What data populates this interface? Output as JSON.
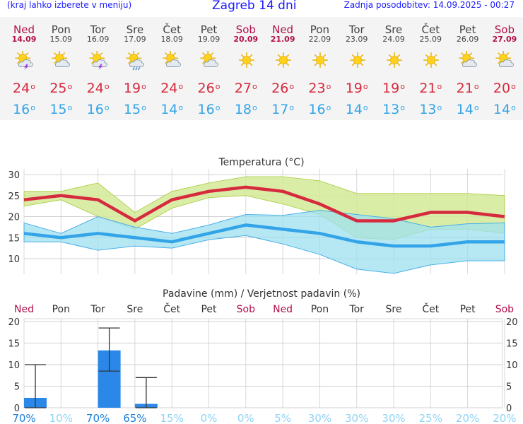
{
  "header": {
    "menu_link": "(kraj lahko izberete v meniju)",
    "title": "Zagreb 14 dni",
    "updated": "Zadnja posodobitev: 14.09.2025 - 00:27"
  },
  "days": [
    {
      "name": "Ned",
      "date": "14.09",
      "weekend": true,
      "icon": "partly-cloudy-thunder-icon",
      "max": "24",
      "min": "16"
    },
    {
      "name": "Pon",
      "date": "15.09",
      "weekend": false,
      "icon": "partly-cloudy-icon",
      "max": "25",
      "min": "15"
    },
    {
      "name": "Tor",
      "date": "16.09",
      "weekend": false,
      "icon": "partly-cloudy-thunder-icon",
      "max": "24",
      "min": "16"
    },
    {
      "name": "Sre",
      "date": "17.09",
      "weekend": false,
      "icon": "partly-cloudy-rain-icon",
      "max": "19",
      "min": "15"
    },
    {
      "name": "Čet",
      "date": "18.09",
      "weekend": false,
      "icon": "partly-cloudy-icon",
      "max": "24",
      "min": "14"
    },
    {
      "name": "Pet",
      "date": "19.09",
      "weekend": false,
      "icon": "partly-cloudy-icon",
      "max": "26",
      "min": "16"
    },
    {
      "name": "Sob",
      "date": "20.09",
      "weekend": true,
      "icon": "sun-icon",
      "max": "27",
      "min": "18"
    },
    {
      "name": "Ned",
      "date": "21.09",
      "weekend": true,
      "icon": "sun-icon",
      "max": "26",
      "min": "17"
    },
    {
      "name": "Pon",
      "date": "22.09",
      "weekend": false,
      "icon": "sun-icon",
      "max": "23",
      "min": "16"
    },
    {
      "name": "Tor",
      "date": "23.09",
      "weekend": false,
      "icon": "sun-icon",
      "max": "19",
      "min": "14"
    },
    {
      "name": "Sre",
      "date": "24.09",
      "weekend": false,
      "icon": "sun-icon",
      "max": "19",
      "min": "13"
    },
    {
      "name": "Čet",
      "date": "25.09",
      "weekend": false,
      "icon": "sun-icon",
      "max": "21",
      "min": "13"
    },
    {
      "name": "Pet",
      "date": "26.09",
      "weekend": false,
      "icon": "partly-cloudy-icon",
      "max": "21",
      "min": "14"
    },
    {
      "name": "Sob",
      "date": "27.09",
      "weekend": true,
      "icon": "partly-cloudy-icon",
      "max": "20",
      "min": "14"
    }
  ],
  "colors": {
    "max": "#d62a3e",
    "min": "#33a4e8",
    "weekend": "#b0104a",
    "max_band": "#d4ea96",
    "min_band": "#9ee0f0",
    "bar": "#2c88e8",
    "prob_low": "#8fd3f5",
    "prob_high": "#1e7fd8"
  },
  "chart_data": [
    {
      "type": "line",
      "title": "Temperatura (°C)",
      "watermark": "vreme.us",
      "ylim": [
        5,
        30
      ],
      "y_ticks": [
        "10",
        "15",
        "20",
        "25",
        "30"
      ],
      "x": [
        "14.09",
        "15.09",
        "16.09",
        "17.09",
        "18.09",
        "19.09",
        "20.09",
        "21.09",
        "22.09",
        "23.09",
        "24.09",
        "25.09",
        "26.09",
        "27.09"
      ],
      "series": [
        {
          "name": "max",
          "values": [
            24,
            25,
            24,
            19,
            24,
            26,
            27,
            26,
            23,
            19,
            19,
            21,
            21,
            20
          ],
          "band_upper": [
            26,
            26,
            28,
            21,
            26,
            28,
            29.5,
            29.5,
            28.5,
            25.5,
            25.5,
            25.5,
            25.5,
            25
          ],
          "band_lower": [
            22.5,
            24,
            20,
            17,
            22,
            24.5,
            25,
            23,
            20.5,
            15,
            14.5,
            17,
            17,
            16
          ]
        },
        {
          "name": "min",
          "values": [
            16,
            15,
            16,
            15,
            14,
            16,
            18,
            17,
            16,
            14,
            13,
            13,
            14,
            14
          ],
          "band_upper": [
            18.5,
            16,
            20,
            17.5,
            16,
            18,
            20.5,
            20.3,
            21.5,
            20.5,
            19.5,
            17.5,
            18.3,
            18.5
          ],
          "band_lower": [
            14,
            14,
            12,
            13,
            12.5,
            14.5,
            15.5,
            13.5,
            11,
            7.5,
            6.5,
            8.5,
            9.5,
            9.5
          ]
        }
      ]
    },
    {
      "type": "bar",
      "title": "Padavine (mm) / Verjetnost padavin (%)",
      "ylim": [
        0,
        20
      ],
      "y_ticks": [
        "0",
        "5",
        "10",
        "15",
        "20"
      ],
      "categories": [
        "Ned",
        "Pon",
        "Tor",
        "Sre",
        "Čet",
        "Pet",
        "Sob",
        "Ned",
        "Pon",
        "Tor",
        "Sre",
        "Čet",
        "Pet",
        "Sob"
      ],
      "weekend": [
        true,
        false,
        false,
        false,
        false,
        false,
        true,
        true,
        false,
        false,
        false,
        false,
        false,
        true
      ],
      "values": [
        2.3,
        0,
        13.3,
        0.9,
        0,
        0,
        0,
        0,
        0,
        0,
        0,
        0,
        0,
        0
      ],
      "error_low": [
        0,
        null,
        8.5,
        0,
        null,
        null,
        null,
        null,
        null,
        null,
        null,
        null,
        null,
        null
      ],
      "error_high": [
        10,
        null,
        18.5,
        7,
        null,
        null,
        null,
        null,
        null,
        null,
        null,
        null,
        null,
        null
      ],
      "probability": [
        "70%",
        "10%",
        "70%",
        "65%",
        "15%",
        "0%",
        "0%",
        "5%",
        "30%",
        "30%",
        "30%",
        "25%",
        "20%",
        "20%"
      ],
      "probability_values": [
        70,
        10,
        70,
        65,
        15,
        0,
        0,
        5,
        30,
        30,
        30,
        25,
        20,
        20
      ]
    }
  ]
}
